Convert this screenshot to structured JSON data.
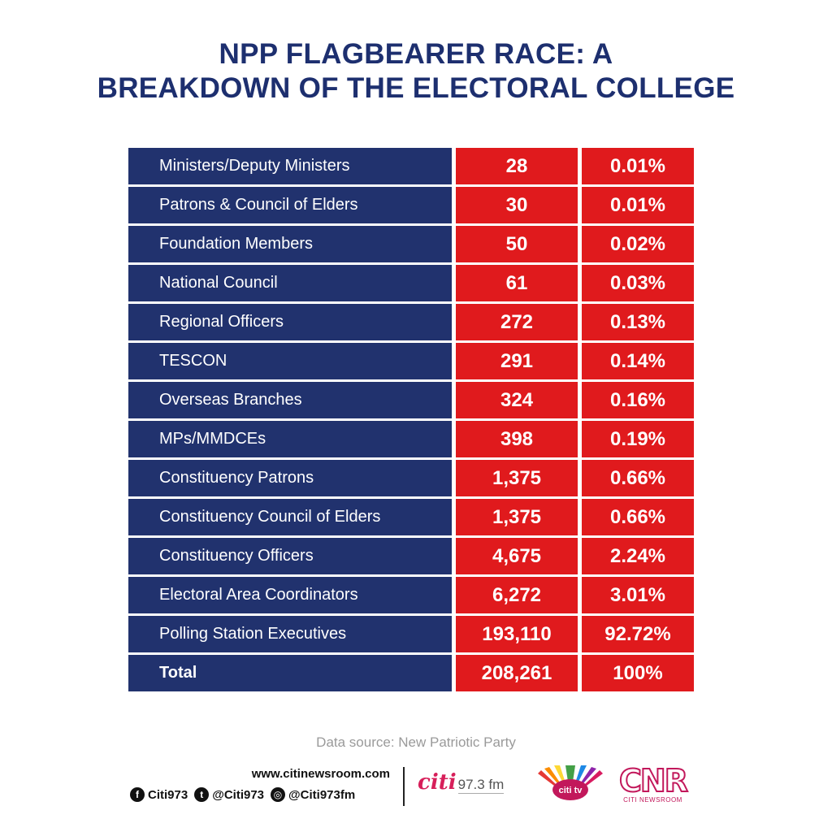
{
  "title": {
    "line1": "NPP FLAGBEARER RACE: A",
    "line2": "BREAKDOWN OF THE ELECTORAL COLLEGE"
  },
  "table": {
    "rows": [
      {
        "label": "Ministers/Deputy Ministers",
        "count": "28",
        "percent": "0.01%"
      },
      {
        "label": "Patrons & Council of Elders",
        "count": "30",
        "percent": "0.01%"
      },
      {
        "label": "Foundation Members",
        "count": "50",
        "percent": "0.02%"
      },
      {
        "label": "National Council",
        "count": "61",
        "percent": "0.03%"
      },
      {
        "label": "Regional Officers",
        "count": "272",
        "percent": "0.13%"
      },
      {
        "label": "TESCON",
        "count": "291",
        "percent": "0.14%"
      },
      {
        "label": "Overseas Branches",
        "count": "324",
        "percent": "0.16%"
      },
      {
        "label": "MPs/MMDCEs",
        "count": "398",
        "percent": "0.19%"
      },
      {
        "label": "Constituency Patrons",
        "count": "1,375",
        "percent": "0.66%"
      },
      {
        "label": "Constituency Council of Elders",
        "count": "1,375",
        "percent": "0.66%"
      },
      {
        "label": "Constituency Officers",
        "count": "4,675",
        "percent": "2.24%"
      },
      {
        "label": "Electoral Area Coordinators",
        "count": "6,272",
        "percent": "3.01%"
      },
      {
        "label": "Polling Station Executives",
        "count": "193,110",
        "percent": "92.72%"
      }
    ],
    "total": {
      "label": "Total",
      "count": "208,261",
      "percent": "100%"
    }
  },
  "source": "Data source: New Patriotic Party",
  "footer": {
    "website": "www.citinewsroom.com",
    "socials": [
      {
        "icon": "facebook-icon",
        "glyph": "f",
        "handle": "Citi973"
      },
      {
        "icon": "twitter-icon",
        "glyph": "t",
        "handle": "@Citi973"
      },
      {
        "icon": "instagram-icon",
        "glyph": "◎",
        "handle": "@Citi973fm"
      }
    ],
    "logos": {
      "radio_brand": "citi",
      "radio_freq": "97.3 fm",
      "tv_brand": "citi tv",
      "cnr_letters": "CNR",
      "cnr_sub": "CITI NEWSROOM"
    }
  },
  "colors": {
    "navy": "#21326e",
    "red": "#e01a1d",
    "title": "#1d2f6f"
  }
}
